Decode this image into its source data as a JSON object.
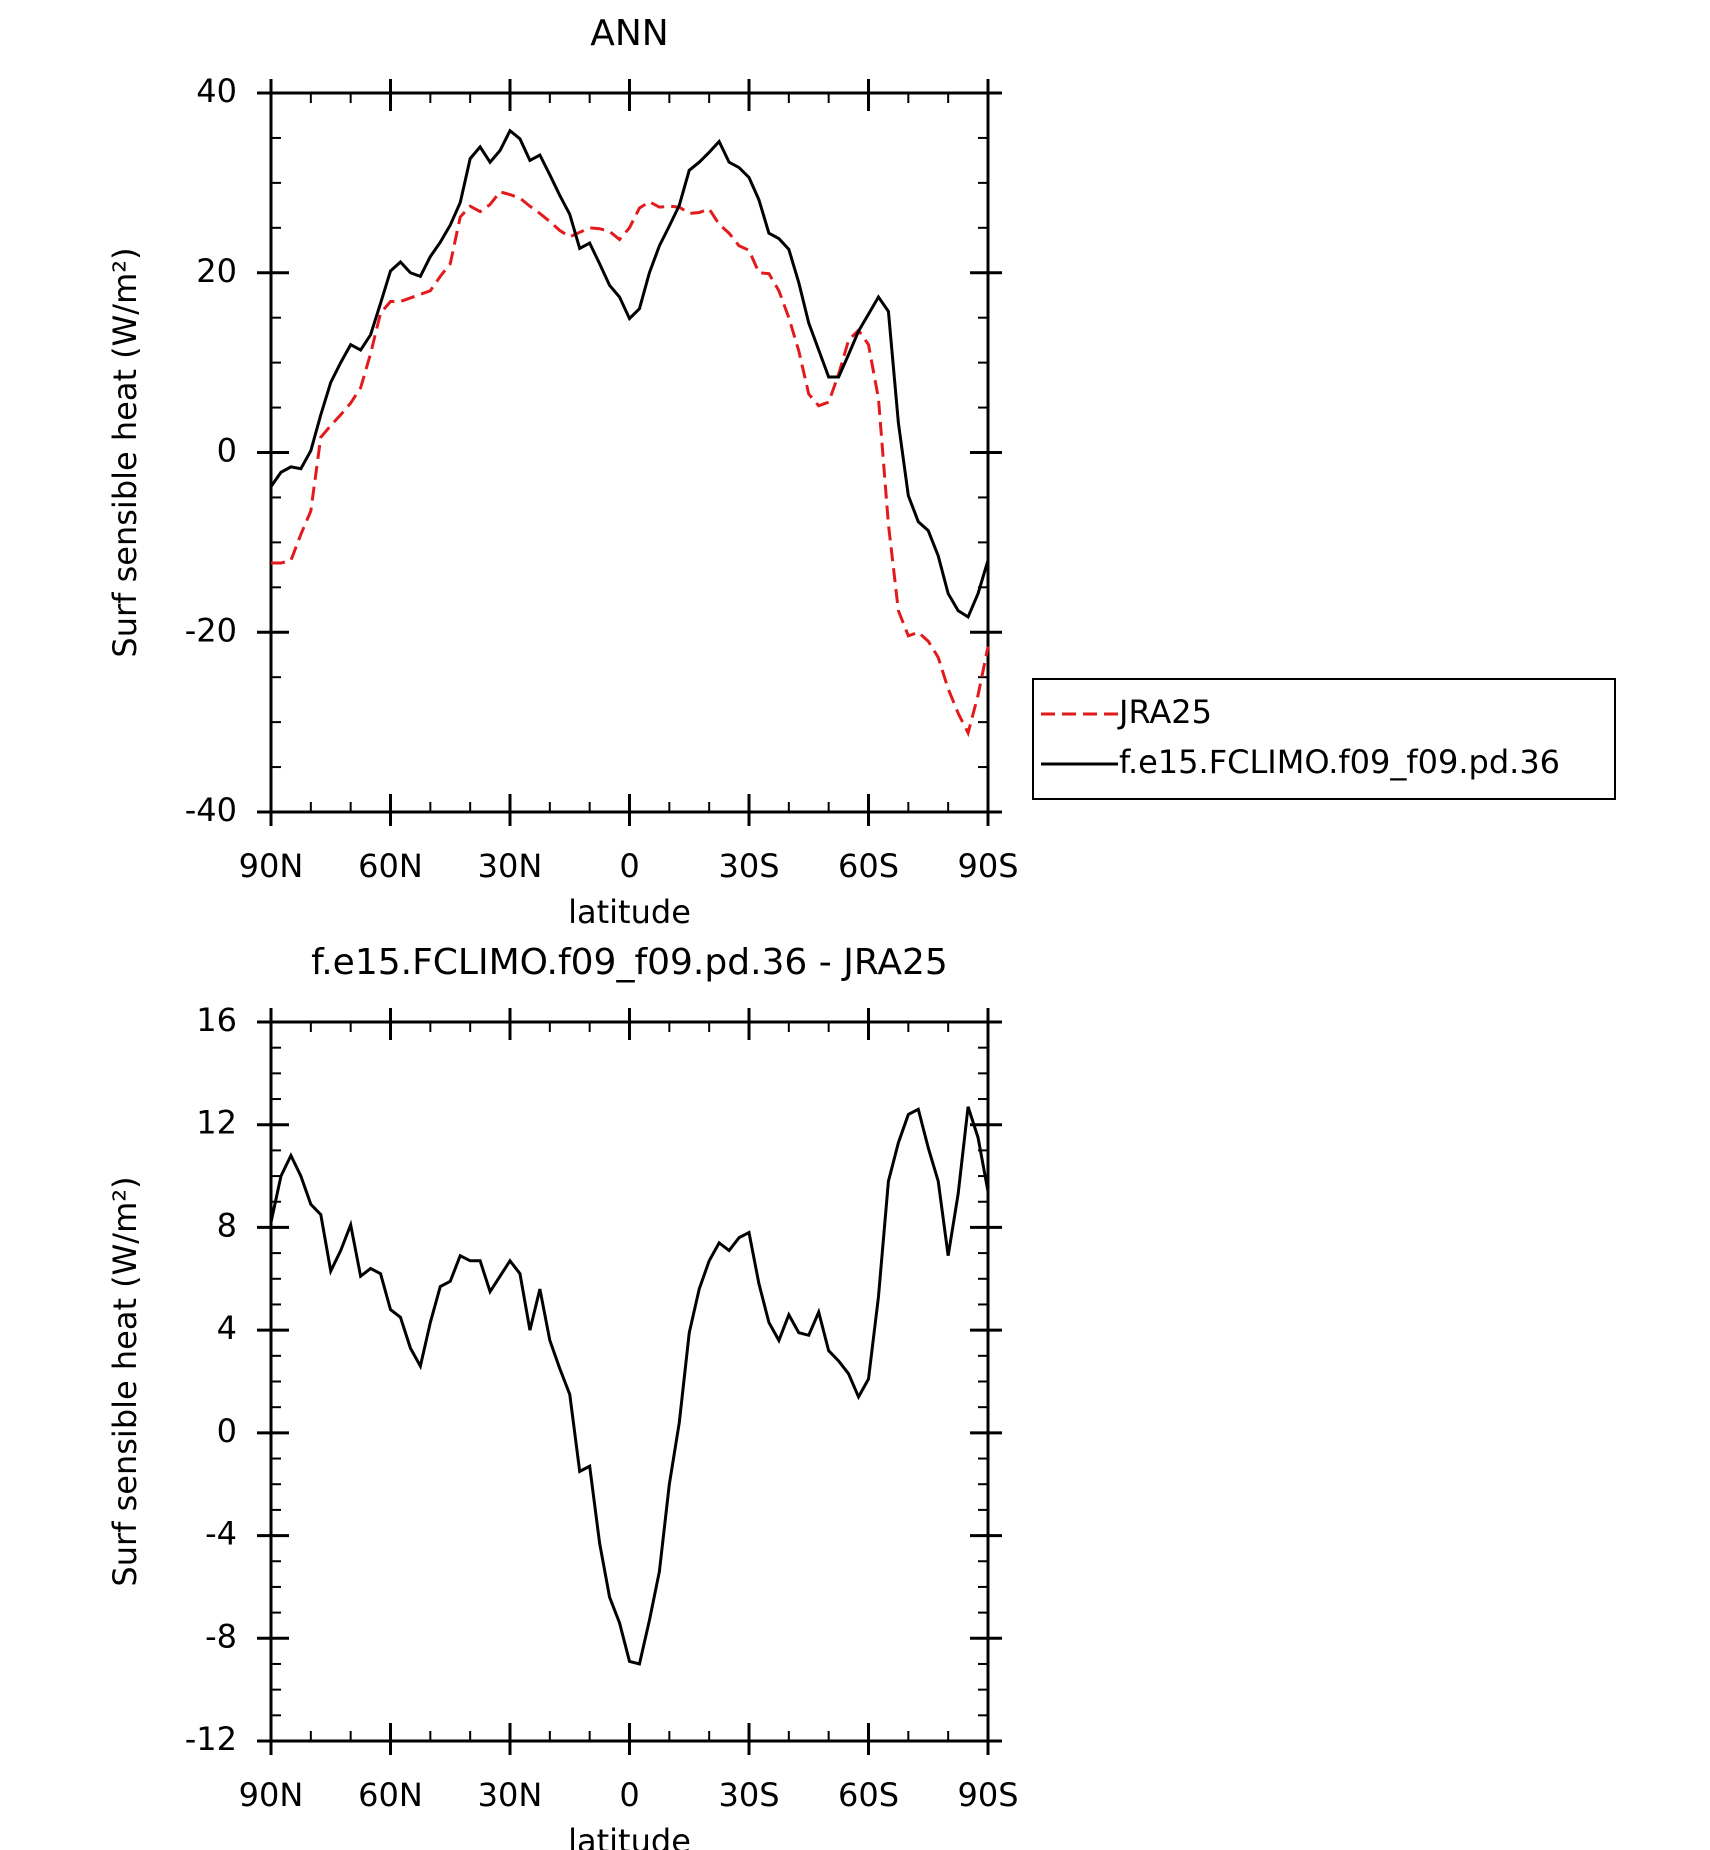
{
  "chart_data": [
    {
      "type": "line",
      "title": "ANN",
      "xlabel": "latitude",
      "ylabel": "Surf sensible heat (W/m²)",
      "x": [
        90,
        87.5,
        85,
        82.5,
        80,
        77.5,
        75,
        72.5,
        70,
        67.5,
        65,
        62.5,
        60,
        57.5,
        55,
        52.5,
        50,
        47.5,
        45,
        42.5,
        40,
        37.5,
        35,
        32.5,
        30,
        27.5,
        25,
        22.5,
        20,
        17.5,
        15,
        12.5,
        10,
        7.5,
        5,
        2.5,
        0,
        -2.5,
        -5,
        -7.5,
        -10,
        -12.5,
        -15,
        -17.5,
        -20,
        -22.5,
        -25,
        -27.5,
        -30,
        -32.5,
        -35,
        -37.5,
        -40,
        -42.5,
        -45,
        -47.5,
        -50,
        -52.5,
        -55,
        -57.5,
        -60,
        -62.5,
        -65,
        -67.5,
        -70,
        -72.5,
        -75,
        -77.5,
        -80,
        -82.5,
        -85,
        -87.5,
        -90
      ],
      "xlim": [
        90,
        -90
      ],
      "xticks": [
        {
          "value": 90,
          "label": "90N"
        },
        {
          "value": 60,
          "label": "60N"
        },
        {
          "value": 30,
          "label": "30N"
        },
        0,
        {
          "value": -30,
          "label": "30S"
        },
        {
          "value": -60,
          "label": "60S"
        },
        {
          "value": -90,
          "label": "90S"
        }
      ],
      "ylim": [
        -40,
        40
      ],
      "yticks": [
        -40,
        -20,
        0,
        20,
        40
      ],
      "legend": "outside-right",
      "series": [
        {
          "name": "JRA25",
          "color": "#e31a1c",
          "style": "dashed",
          "values": [
            -12.3,
            -12.3,
            -12.0,
            -9.1,
            -6.5,
            1.7,
            3.0,
            4.2,
            5.5,
            7.2,
            11.0,
            15.5,
            16.8,
            16.8,
            17.2,
            17.6,
            18.0,
            19.6,
            21.0,
            26.2,
            27.4,
            26.8,
            27.6,
            29.0,
            28.7,
            28.3,
            27.4,
            26.6,
            25.7,
            24.7,
            24.0,
            24.5,
            25.0,
            24.9,
            24.6,
            23.7,
            25.0,
            27.2,
            27.9,
            27.3,
            27.4,
            27.3,
            26.6,
            26.7,
            27.1,
            25.4,
            24.4,
            23.0,
            22.5,
            20.0,
            19.9,
            18.0,
            15.0,
            11.3,
            6.5,
            5.2,
            5.6,
            8.7,
            12.5,
            13.6,
            12.0,
            6.0,
            -8.0,
            -17.6,
            -20.4,
            -20.0,
            -21.0,
            -22.8,
            -26.3,
            -29.0,
            -31.2,
            -27.0,
            -21.6
          ]
        },
        {
          "name": "f.e15.FCLIMO.f09_f09.pd.36",
          "color": "#000000",
          "style": "solid",
          "values": [
            -3.8,
            -2.2,
            -1.6,
            -1.8,
            0.2,
            4.2,
            7.8,
            10.0,
            12.0,
            11.4,
            13.1,
            16.6,
            20.2,
            21.2,
            20.0,
            19.6,
            21.8,
            23.4,
            25.3,
            27.8,
            32.7,
            34.0,
            32.3,
            33.6,
            35.8,
            34.9,
            32.5,
            33.1,
            30.9,
            28.6,
            26.5,
            22.7,
            23.3,
            21.0,
            18.6,
            17.3,
            14.9,
            16.0,
            20.0,
            23.0,
            25.2,
            27.5,
            31.4,
            32.3,
            33.4,
            34.6,
            32.3,
            31.7,
            30.6,
            28.1,
            24.4,
            23.8,
            22.6,
            18.9,
            14.4,
            11.4,
            8.4,
            8.4,
            10.9,
            13.5,
            15.4,
            17.3,
            15.7,
            3.3,
            -4.8,
            -7.7,
            -8.7,
            -11.5,
            -15.7,
            -17.6,
            -18.3,
            -15.7,
            -12.0
          ]
        }
      ]
    },
    {
      "type": "line",
      "title": "f.e15.FCLIMO.f09_f09.pd.36 - JRA25",
      "xlabel": "latitude",
      "ylabel": "Surf sensible heat (W/m²)",
      "x": [
        90,
        87.5,
        85,
        82.5,
        80,
        77.5,
        75,
        72.5,
        70,
        67.5,
        65,
        62.5,
        60,
        57.5,
        55,
        52.5,
        50,
        47.5,
        45,
        42.5,
        40,
        37.5,
        35,
        32.5,
        30,
        27.5,
        25,
        22.5,
        20,
        17.5,
        15,
        12.5,
        10,
        7.5,
        5,
        2.5,
        0,
        -2.5,
        -5,
        -7.5,
        -10,
        -12.5,
        -15,
        -17.5,
        -20,
        -22.5,
        -25,
        -27.5,
        -30,
        -32.5,
        -35,
        -37.5,
        -40,
        -42.5,
        -45,
        -47.5,
        -50,
        -52.5,
        -55,
        -57.5,
        -60,
        -62.5,
        -65,
        -67.5,
        -70,
        -72.5,
        -75,
        -77.5,
        -80,
        -82.5,
        -85,
        -87.5,
        -90
      ],
      "xlim": [
        90,
        -90
      ],
      "xticks": [
        {
          "value": 90,
          "label": "90N"
        },
        {
          "value": 60,
          "label": "60N"
        },
        {
          "value": 30,
          "label": "30N"
        },
        0,
        {
          "value": -30,
          "label": "30S"
        },
        {
          "value": -60,
          "label": "60S"
        },
        {
          "value": -90,
          "label": "90S"
        }
      ],
      "ylim": [
        -12,
        16
      ],
      "yticks": [
        -12,
        -8,
        -4,
        0,
        4,
        8,
        12,
        16
      ],
      "series": [
        {
          "color": "#000000",
          "style": "solid",
          "values": [
            8.2,
            10.0,
            10.8,
            10.0,
            8.9,
            8.5,
            6.3,
            7.1,
            8.1,
            6.1,
            6.4,
            6.2,
            4.8,
            4.5,
            3.3,
            2.6,
            4.3,
            5.7,
            5.9,
            6.9,
            6.7,
            6.7,
            5.5,
            6.1,
            6.7,
            6.2,
            4.0,
            5.6,
            3.6,
            2.5,
            1.5,
            -1.5,
            -1.3,
            -4.3,
            -6.4,
            -7.4,
            -8.9,
            -9.0,
            -7.3,
            -5.4,
            -2.0,
            0.4,
            3.9,
            5.6,
            6.7,
            7.4,
            7.1,
            7.6,
            7.8,
            5.8,
            4.3,
            3.6,
            4.6,
            3.9,
            3.8,
            4.7,
            3.2,
            2.8,
            2.3,
            1.4,
            2.1,
            5.3,
            9.8,
            11.3,
            12.4,
            12.6,
            11.1,
            9.8,
            6.9,
            9.3,
            12.7,
            11.5,
            9.4
          ]
        }
      ]
    }
  ]
}
